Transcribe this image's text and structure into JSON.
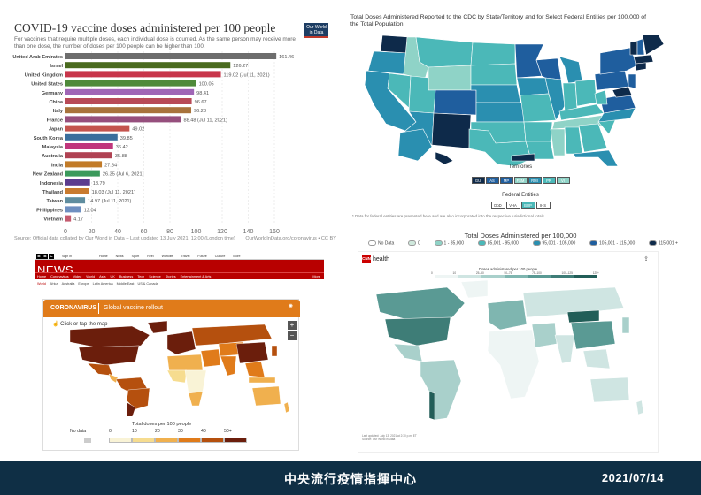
{
  "owid": {
    "title": "COVID-19 vaccine doses administered per 100 people",
    "subtitle": "For vaccines that require multiple doses, each individual dose is counted. As the same person may receive more than one dose, the number of doses per 100 people can be higher than 100.",
    "logo_text": "Our World in Data",
    "source": "Source: Official data collated by Our World in Data – Last updated 13 July 2021, 12:00 (London time)",
    "source_right": "OurWorldInData.org/coronavirus • CC BY"
  },
  "chart_data": {
    "type": "bar",
    "orientation": "horizontal",
    "title": "COVID-19 vaccine doses administered per 100 people",
    "xlim": [
      0,
      160
    ],
    "xticks": [
      0,
      20,
      40,
      60,
      80,
      100,
      120,
      140,
      160
    ],
    "categories": [
      "United Arab Emirates",
      "Israel",
      "United Kingdom",
      "United States",
      "Germany",
      "China",
      "Italy",
      "France",
      "Japan",
      "South Korea",
      "Malaysia",
      "Australia",
      "India",
      "New Zealand",
      "Indonesia",
      "Thailand",
      "Taiwan",
      "Philippines",
      "Vietnam"
    ],
    "values": [
      161.46,
      126.27,
      119.02,
      100.05,
      98.41,
      96.67,
      96.28,
      88.48,
      49.02,
      39.85,
      36.42,
      35.88,
      27.84,
      26.35,
      18.79,
      18.03,
      14.97,
      12.04,
      4.17
    ],
    "value_labels": [
      "161.46",
      "126.27",
      "119.02 (Jul 11, 2021)",
      "100.05",
      "98.41",
      "96.67",
      "96.28",
      "88.48 (Jul 11, 2021)",
      "49.02",
      "39.85",
      "36.42",
      "35.88",
      "27.84",
      "26.35 (Jul 6, 2021)",
      "18.79",
      "18.03 (Jul 11, 2021)",
      "14.97 (Jul 11, 2021)",
      "12.04",
      "4.17"
    ],
    "colors": [
      "#6d6d6d",
      "#4a6b1f",
      "#c8354a",
      "#4f8a3a",
      "#a066b6",
      "#b84a57",
      "#a8733c",
      "#964f7d",
      "#c4544e",
      "#3a6e9c",
      "#c0367c",
      "#b04252",
      "#c27b28",
      "#3b9a5c",
      "#5c3c8f",
      "#c97b2f",
      "#5f8d9f",
      "#6e8fc0",
      "#c45a6e"
    ]
  },
  "cdc": {
    "title": "Total Doses Administered Reported to the CDC by State/Territory and for Select Federal Entities per 100,000 of the Total Population",
    "territories_label": "Territories",
    "territories": [
      "GU",
      "AS",
      "MP",
      "FSM",
      "RMI",
      "PR",
      "VI"
    ],
    "federal_label": "Federal Entities",
    "federal": [
      "DoD",
      "VHA",
      "BOP",
      "IHS"
    ],
    "note": "* Data for federal entities are presented here and are also incorporated into the respective jurisdictional totals",
    "legend_title": "Total Doses Administered per 100,000",
    "legend": [
      "No Data",
      "0",
      "1 - 85,000",
      "85,001 - 95,000",
      "95,001 - 105,000",
      "105,001 - 115,000",
      "115,001 +"
    ],
    "legend_colors": [
      "#ffffff",
      "#cfe8dc",
      "#8fd3c7",
      "#4bb8b8",
      "#2a8fb0",
      "#1f5e9e",
      "#0e2a4a"
    ]
  },
  "bbc": {
    "signin": "Sign in",
    "topnav": [
      "Home",
      "News",
      "Sport",
      "Reel",
      "Worklife",
      "Travel",
      "Future",
      "Culture",
      "More"
    ],
    "news": "NEWS",
    "subnav": [
      "Home",
      "Coronavirus",
      "Video",
      "World",
      "Asia",
      "UK",
      "Business",
      "Tech",
      "Science",
      "Stories",
      "Entertainment & Arts",
      "More"
    ],
    "crumbs": [
      "World",
      "Africa",
      "Australia",
      "Europe",
      "Latin America",
      "Middle East",
      "US & Canada"
    ],
    "coronavirus": "CORONAVIRUS",
    "rollout": "Global vaccine rollout",
    "hint": "Click or tap the map",
    "zoom_in": "+",
    "zoom_out": "−",
    "legend_title": "Total doses per 100 people",
    "legend_labels": [
      "No data",
      "0",
      "10",
      "20",
      "30",
      "40",
      "50+"
    ],
    "legend_colors": [
      "#f9f3d6",
      "#f6dc8f",
      "#f0b04e",
      "#e07b1a",
      "#b5500e",
      "#6b1e0c"
    ]
  },
  "cnn": {
    "logo": "CNN",
    "health": "health",
    "map_title": "Doses administered per 100 people",
    "ticks": [
      "0",
      "10",
      "25–50",
      "50–75",
      "75–100",
      "100–125",
      "125+"
    ],
    "scale_colors": [
      "#eef5f4",
      "#cfe5e2",
      "#a9d0cb",
      "#7fb6b0",
      "#5a9a94",
      "#3e7d77",
      "#225e58"
    ],
    "foot": [
      "Last updated: July 13, 2021 at 2:30 p.m. ET",
      "Source: Our World in Data"
    ]
  },
  "footer": {
    "center": "中央流行疫情指揮中心",
    "date": "2021/07/14"
  }
}
